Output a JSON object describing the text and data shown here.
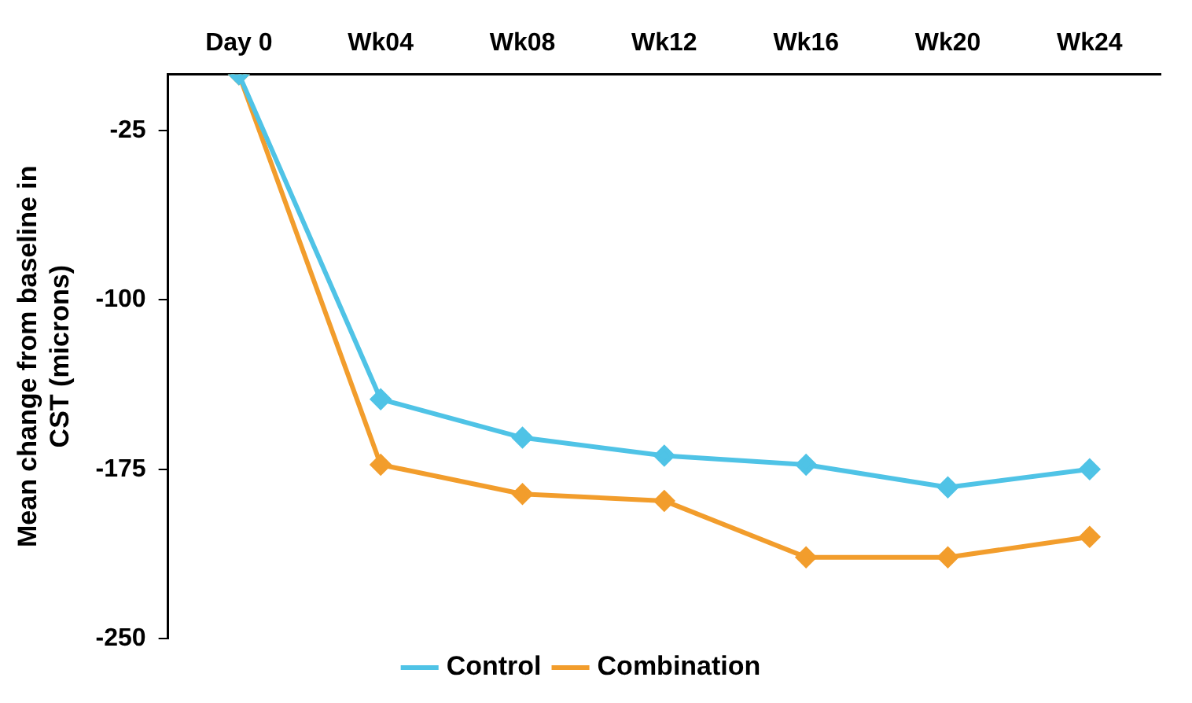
{
  "chart_data": {
    "type": "line",
    "ylabel": "Mean change from baseline in CST (microns)",
    "categories": [
      "Day 0",
      "Wk04",
      "Wk08",
      "Wk12",
      "Wk16",
      "Wk20",
      "Wk24"
    ],
    "series": [
      {
        "name": "Control",
        "color": "#4fc3e6",
        "values": [
          0,
          -144,
          -161,
          -169,
          -173,
          -183,
          -175
        ]
      },
      {
        "name": "Combination",
        "color": "#f29d2c",
        "values": [
          0,
          -173,
          -186,
          -189,
          -214,
          -214,
          -205
        ]
      }
    ],
    "ylim": [
      -250,
      0
    ],
    "yticks": [
      -250,
      -175,
      -100,
      -25
    ],
    "grid": false,
    "legend": "bottom",
    "marker": "diamond",
    "line_style": "solid"
  }
}
